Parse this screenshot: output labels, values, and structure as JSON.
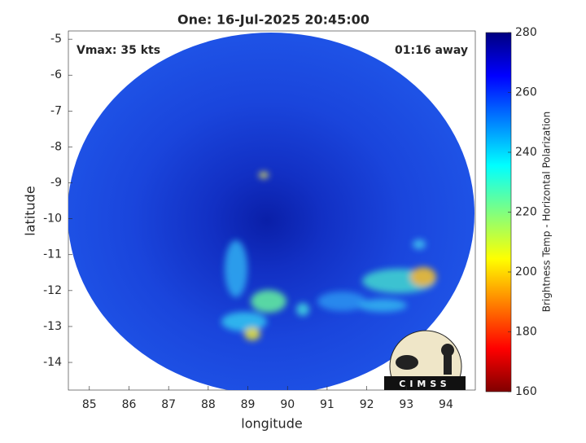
{
  "chart_data": {
    "type": "image",
    "title": "One: 16-Jul-2025 20:45:00",
    "xlabel": "longitude",
    "ylabel": "latitude",
    "xlim": [
      84.47,
      94.74
    ],
    "xticks": [
      85,
      86,
      87,
      88,
      89,
      90,
      91,
      92,
      93,
      94
    ],
    "ylim": [
      -14.77,
      -4.77
    ],
    "yticks": [
      -14,
      -13,
      -12,
      -11,
      -10,
      -9,
      -8,
      -7,
      -6,
      -5
    ],
    "annotations": [
      "Vmax: 35 kts",
      "01:16 away"
    ],
    "colorbar": {
      "label": "Brightness Temp - Horizontal Polarization",
      "lim": [
        160,
        280
      ],
      "ticks": [
        160,
        180,
        200,
        220,
        240,
        260,
        280
      ]
    },
    "logo": "CIMSS"
  }
}
